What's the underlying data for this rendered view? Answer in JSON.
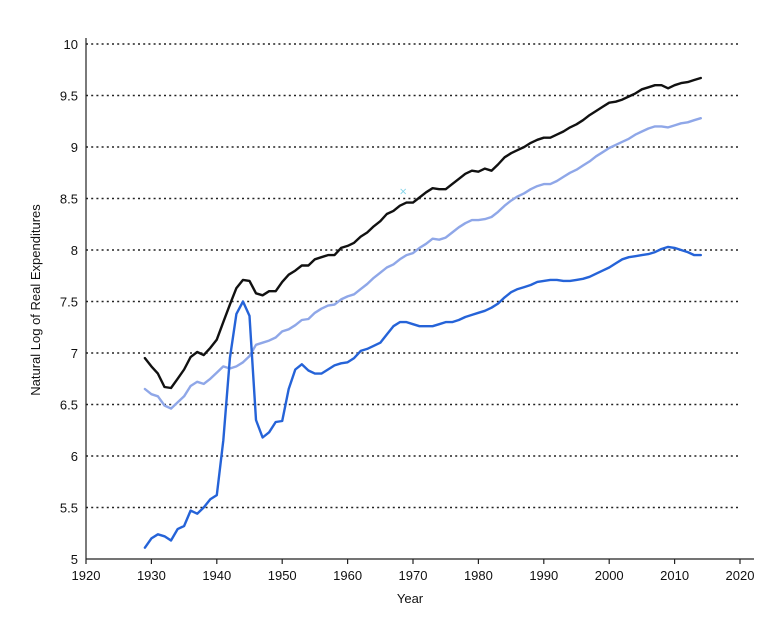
{
  "chart_data": {
    "type": "line",
    "title": "",
    "xlabel": "Year",
    "ylabel": "Natural Log of Real Expenditures",
    "xlim": [
      1920,
      2020
    ],
    "ylim": [
      5,
      10
    ],
    "xticks": [
      1920,
      1930,
      1940,
      1950,
      1960,
      1970,
      1980,
      1990,
      2000,
      2010,
      2020
    ],
    "yticks": [
      5,
      5.5,
      6,
      6.5,
      7,
      7.5,
      8,
      8.5,
      9,
      9.5,
      10
    ],
    "ytick_labels": [
      "5",
      "5.5",
      "6",
      "6.5",
      "7",
      "7.5",
      "8",
      "8.5",
      "9",
      "9.5",
      "10"
    ],
    "grid": "horizontal dotted",
    "legend": "none",
    "series": [
      {
        "color": "#111111",
        "points": [
          [
            1929,
            6.95
          ],
          [
            1930,
            6.87
          ],
          [
            1931,
            6.8
          ],
          [
            1932,
            6.67
          ],
          [
            1933,
            6.66
          ],
          [
            1934,
            6.75
          ],
          [
            1935,
            6.84
          ],
          [
            1936,
            6.96
          ],
          [
            1937,
            7.01
          ],
          [
            1938,
            6.98
          ],
          [
            1939,
            7.05
          ],
          [
            1940,
            7.13
          ],
          [
            1941,
            7.3
          ],
          [
            1942,
            7.47
          ],
          [
            1943,
            7.63
          ],
          [
            1944,
            7.71
          ],
          [
            1945,
            7.7
          ],
          [
            1946,
            7.58
          ],
          [
            1947,
            7.56
          ],
          [
            1948,
            7.6
          ],
          [
            1949,
            7.6
          ],
          [
            1950,
            7.69
          ],
          [
            1951,
            7.76
          ],
          [
            1952,
            7.8
          ],
          [
            1953,
            7.85
          ],
          [
            1954,
            7.85
          ],
          [
            1955,
            7.91
          ],
          [
            1956,
            7.93
          ],
          [
            1957,
            7.95
          ],
          [
            1958,
            7.95
          ],
          [
            1959,
            8.02
          ],
          [
            1960,
            8.04
          ],
          [
            1961,
            8.07
          ],
          [
            1962,
            8.13
          ],
          [
            1963,
            8.17
          ],
          [
            1964,
            8.23
          ],
          [
            1965,
            8.28
          ],
          [
            1966,
            8.35
          ],
          [
            1967,
            8.38
          ],
          [
            1968,
            8.43
          ],
          [
            1969,
            8.46
          ],
          [
            1970,
            8.46
          ],
          [
            1971,
            8.51
          ],
          [
            1972,
            8.56
          ],
          [
            1973,
            8.6
          ],
          [
            1974,
            8.59
          ],
          [
            1975,
            8.59
          ],
          [
            1976,
            8.64
          ],
          [
            1977,
            8.69
          ],
          [
            1978,
            8.74
          ],
          [
            1979,
            8.77
          ],
          [
            1980,
            8.76
          ],
          [
            1981,
            8.79
          ],
          [
            1982,
            8.77
          ],
          [
            1983,
            8.83
          ],
          [
            1984,
            8.9
          ],
          [
            1985,
            8.94
          ],
          [
            1986,
            8.97
          ],
          [
            1987,
            9.0
          ],
          [
            1988,
            9.04
          ],
          [
            1989,
            9.07
          ],
          [
            1990,
            9.09
          ],
          [
            1991,
            9.09
          ],
          [
            1992,
            9.12
          ],
          [
            1993,
            9.15
          ],
          [
            1994,
            9.19
          ],
          [
            1995,
            9.22
          ],
          [
            1996,
            9.26
          ],
          [
            1997,
            9.31
          ],
          [
            1998,
            9.35
          ],
          [
            1999,
            9.39
          ],
          [
            2000,
            9.43
          ],
          [
            2001,
            9.44
          ],
          [
            2002,
            9.46
          ],
          [
            2003,
            9.49
          ],
          [
            2004,
            9.52
          ],
          [
            2005,
            9.56
          ],
          [
            2006,
            9.58
          ],
          [
            2007,
            9.6
          ],
          [
            2008,
            9.6
          ],
          [
            2009,
            9.57
          ],
          [
            2010,
            9.6
          ],
          [
            2011,
            9.62
          ],
          [
            2012,
            9.63
          ],
          [
            2013,
            9.65
          ],
          [
            2014,
            9.67
          ]
        ]
      },
      {
        "color": "#8fa7e8",
        "points": [
          [
            1929,
            6.65
          ],
          [
            1930,
            6.6
          ],
          [
            1931,
            6.58
          ],
          [
            1932,
            6.49
          ],
          [
            1933,
            6.46
          ],
          [
            1934,
            6.52
          ],
          [
            1935,
            6.58
          ],
          [
            1936,
            6.68
          ],
          [
            1937,
            6.72
          ],
          [
            1938,
            6.7
          ],
          [
            1939,
            6.75
          ],
          [
            1940,
            6.81
          ],
          [
            1941,
            6.87
          ],
          [
            1942,
            6.85
          ],
          [
            1943,
            6.87
          ],
          [
            1944,
            6.91
          ],
          [
            1945,
            6.97
          ],
          [
            1946,
            7.08
          ],
          [
            1947,
            7.1
          ],
          [
            1948,
            7.12
          ],
          [
            1949,
            7.15
          ],
          [
            1950,
            7.21
          ],
          [
            1951,
            7.23
          ],
          [
            1952,
            7.27
          ],
          [
            1953,
            7.32
          ],
          [
            1954,
            7.33
          ],
          [
            1955,
            7.39
          ],
          [
            1956,
            7.43
          ],
          [
            1957,
            7.46
          ],
          [
            1958,
            7.47
          ],
          [
            1959,
            7.52
          ],
          [
            1960,
            7.55
          ],
          [
            1961,
            7.57
          ],
          [
            1962,
            7.62
          ],
          [
            1963,
            7.67
          ],
          [
            1964,
            7.73
          ],
          [
            1965,
            7.78
          ],
          [
            1966,
            7.83
          ],
          [
            1967,
            7.86
          ],
          [
            1968,
            7.91
          ],
          [
            1969,
            7.95
          ],
          [
            1970,
            7.97
          ],
          [
            1971,
            8.02
          ],
          [
            1972,
            8.06
          ],
          [
            1973,
            8.11
          ],
          [
            1974,
            8.1
          ],
          [
            1975,
            8.12
          ],
          [
            1976,
            8.17
          ],
          [
            1977,
            8.22
          ],
          [
            1978,
            8.26
          ],
          [
            1979,
            8.29
          ],
          [
            1980,
            8.29
          ],
          [
            1981,
            8.3
          ],
          [
            1982,
            8.32
          ],
          [
            1983,
            8.37
          ],
          [
            1984,
            8.43
          ],
          [
            1985,
            8.48
          ],
          [
            1986,
            8.52
          ],
          [
            1987,
            8.55
          ],
          [
            1988,
            8.59
          ],
          [
            1989,
            8.62
          ],
          [
            1990,
            8.64
          ],
          [
            1991,
            8.64
          ],
          [
            1992,
            8.67
          ],
          [
            1993,
            8.71
          ],
          [
            1994,
            8.75
          ],
          [
            1995,
            8.78
          ],
          [
            1996,
            8.82
          ],
          [
            1997,
            8.86
          ],
          [
            1998,
            8.91
          ],
          [
            1999,
            8.95
          ],
          [
            2000,
            8.99
          ],
          [
            2001,
            9.02
          ],
          [
            2002,
            9.05
          ],
          [
            2003,
            9.08
          ],
          [
            2004,
            9.12
          ],
          [
            2005,
            9.15
          ],
          [
            2006,
            9.18
          ],
          [
            2007,
            9.2
          ],
          [
            2008,
            9.2
          ],
          [
            2009,
            9.19
          ],
          [
            2010,
            9.21
          ],
          [
            2011,
            9.23
          ],
          [
            2012,
            9.24
          ],
          [
            2013,
            9.26
          ],
          [
            2014,
            9.28
          ]
        ]
      },
      {
        "color": "#2563d8",
        "points": [
          [
            1929,
            5.11
          ],
          [
            1930,
            5.2
          ],
          [
            1931,
            5.24
          ],
          [
            1932,
            5.22
          ],
          [
            1933,
            5.18
          ],
          [
            1934,
            5.29
          ],
          [
            1935,
            5.32
          ],
          [
            1936,
            5.47
          ],
          [
            1937,
            5.44
          ],
          [
            1938,
            5.5
          ],
          [
            1939,
            5.58
          ],
          [
            1940,
            5.62
          ],
          [
            1941,
            6.15
          ],
          [
            1942,
            6.95
          ],
          [
            1943,
            7.38
          ],
          [
            1944,
            7.5
          ],
          [
            1945,
            7.36
          ],
          [
            1946,
            6.35
          ],
          [
            1947,
            6.18
          ],
          [
            1948,
            6.23
          ],
          [
            1949,
            6.33
          ],
          [
            1950,
            6.34
          ],
          [
            1951,
            6.65
          ],
          [
            1952,
            6.84
          ],
          [
            1953,
            6.89
          ],
          [
            1954,
            6.83
          ],
          [
            1955,
            6.8
          ],
          [
            1956,
            6.8
          ],
          [
            1957,
            6.84
          ],
          [
            1958,
            6.88
          ],
          [
            1959,
            6.9
          ],
          [
            1960,
            6.91
          ],
          [
            1961,
            6.95
          ],
          [
            1962,
            7.02
          ],
          [
            1963,
            7.04
          ],
          [
            1964,
            7.07
          ],
          [
            1965,
            7.1
          ],
          [
            1966,
            7.18
          ],
          [
            1967,
            7.26
          ],
          [
            1968,
            7.3
          ],
          [
            1969,
            7.3
          ],
          [
            1970,
            7.28
          ],
          [
            1971,
            7.26
          ],
          [
            1972,
            7.26
          ],
          [
            1973,
            7.26
          ],
          [
            1974,
            7.28
          ],
          [
            1975,
            7.3
          ],
          [
            1976,
            7.3
          ],
          [
            1977,
            7.32
          ],
          [
            1978,
            7.35
          ],
          [
            1979,
            7.37
          ],
          [
            1980,
            7.39
          ],
          [
            1981,
            7.41
          ],
          [
            1982,
            7.44
          ],
          [
            1983,
            7.48
          ],
          [
            1984,
            7.54
          ],
          [
            1985,
            7.59
          ],
          [
            1986,
            7.62
          ],
          [
            1987,
            7.64
          ],
          [
            1988,
            7.66
          ],
          [
            1989,
            7.69
          ],
          [
            1990,
            7.7
          ],
          [
            1991,
            7.71
          ],
          [
            1992,
            7.71
          ],
          [
            1993,
            7.7
          ],
          [
            1994,
            7.7
          ],
          [
            1995,
            7.71
          ],
          [
            1996,
            7.72
          ],
          [
            1997,
            7.74
          ],
          [
            1998,
            7.77
          ],
          [
            1999,
            7.8
          ],
          [
            2000,
            7.83
          ],
          [
            2001,
            7.87
          ],
          [
            2002,
            7.91
          ],
          [
            2003,
            7.93
          ],
          [
            2004,
            7.94
          ],
          [
            2005,
            7.95
          ],
          [
            2006,
            7.96
          ],
          [
            2007,
            7.98
          ],
          [
            2008,
            8.01
          ],
          [
            2009,
            8.03
          ],
          [
            2010,
            8.02
          ],
          [
            2011,
            8.0
          ],
          [
            2012,
            7.98
          ],
          [
            2013,
            7.95
          ],
          [
            2014,
            7.95
          ]
        ]
      }
    ],
    "annotations": [
      {
        "text": "×",
        "x": 1968.5,
        "y": 8.58,
        "color": "#7fd3e8"
      }
    ]
  }
}
